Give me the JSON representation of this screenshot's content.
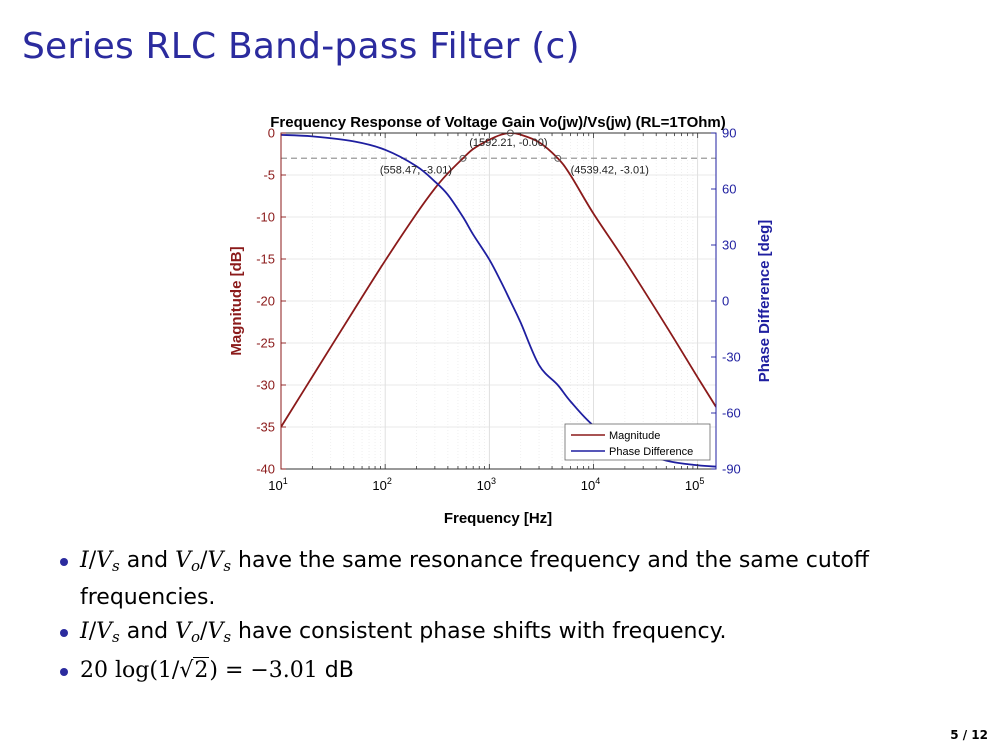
{
  "slide": {
    "title": "Series RLC Band-pass Filter (c)",
    "page": "5 / 12"
  },
  "colors": {
    "magnitude": "#8b1a1a",
    "phase": "#1f1fa0",
    "title": "#2b2b9e",
    "cutoff_line": "#999999"
  },
  "bullets": [
    {
      "a1": "I",
      "a2": "/",
      "a3": "V",
      "a3sub": "s",
      "mid": " and ",
      "b1": "V",
      "b1sub": "o",
      "b2": "/",
      "b3": "V",
      "b3sub": "s",
      "rest": " have the same resonance frequency and the same cutoff frequencies."
    },
    {
      "a1": "I",
      "a2": "/",
      "a3": "V",
      "a3sub": "s",
      "mid": " and ",
      "b1": "V",
      "b1sub": "o",
      "b2": "/",
      "b3": "V",
      "b3sub": "s",
      "rest": " have consistent phase shifts with frequency."
    },
    {
      "pre": "20 log(1/",
      "radical": "√",
      "radicand": "2",
      "post": ") = −3.01",
      "unit": " dB"
    }
  ],
  "chart_data": {
    "type": "line",
    "title": "Frequency Response of Voltage Gain Vo(jw)/Vs(jw) (RL=1TOhm)",
    "xlabel": "Frequency [Hz]",
    "ylabel_left": "Magnitude [dB]",
    "ylabel_right": "Phase Difference [deg]",
    "xscale": "log",
    "xlim": [
      10,
      150000
    ],
    "ylim_left": [
      -40,
      0
    ],
    "ylim_right": [
      -90,
      90
    ],
    "x_ticks": [
      10,
      100,
      1000,
      10000,
      100000
    ],
    "x_tick_labels": [
      {
        "base": "10",
        "exp": "1"
      },
      {
        "base": "10",
        "exp": "2"
      },
      {
        "base": "10",
        "exp": "3"
      },
      {
        "base": "10",
        "exp": "4"
      },
      {
        "base": "10",
        "exp": "5"
      }
    ],
    "y_left_ticks": [
      0,
      -5,
      -10,
      -15,
      -20,
      -25,
      -30,
      -35,
      -40
    ],
    "y_left_tick_labels": [
      "0",
      "-5",
      "-10",
      "-15",
      "-20",
      "-25",
      "-30",
      "-35",
      "-40"
    ],
    "y_right_ticks": [
      90,
      60,
      30,
      0,
      -30,
      -60,
      -90
    ],
    "y_right_tick_labels": [
      "90",
      "60",
      "30",
      "0",
      "-30",
      "-60",
      "-90"
    ],
    "grid": true,
    "legend": {
      "placement": "bottom-right",
      "entries": [
        "Magnitude",
        "Phase Difference"
      ]
    },
    "resonance_hz": 1592.21,
    "cutoff_low_hz": 558.47,
    "cutoff_high_hz": 4539.42,
    "cutoff_db": -3.01,
    "annotations": [
      {
        "x": 1592.21,
        "y": 0.0,
        "label": "(1592.21, -0.00)"
      },
      {
        "x": 558.47,
        "y": -3.01,
        "label": "(558.47, -3.01)"
      },
      {
        "x": 4539.42,
        "y": -3.01,
        "label": "(4539.42, -3.01)"
      }
    ],
    "series": [
      {
        "name": "Magnitude",
        "axis": "left",
        "x": [
          10,
          20,
          50,
          100,
          200,
          300,
          400,
          558.47,
          700,
          1000,
          1300,
          1592.21,
          2000,
          3000,
          4539.42,
          6000,
          10000,
          20000,
          50000,
          100000,
          150000
        ],
        "y": [
          -35.0,
          -29.0,
          -21.1,
          -15.2,
          -9.6,
          -6.6,
          -4.8,
          -3.01,
          -1.9,
          -0.8,
          -0.2,
          0.0,
          -0.2,
          -1.1,
          -3.01,
          -5.0,
          -9.6,
          -15.2,
          -23.0,
          -29.1,
          -32.6
        ]
      },
      {
        "name": "Phase Difference",
        "axis": "right",
        "x": [
          10,
          20,
          50,
          100,
          200,
          300,
          400,
          558.47,
          700,
          1000,
          1300,
          1592.21,
          2000,
          3000,
          4539.42,
          6000,
          10000,
          20000,
          50000,
          100000,
          150000
        ],
        "y": [
          89.0,
          88.2,
          85.5,
          81.0,
          72.2,
          64.0,
          56.9,
          45.0,
          35.6,
          22.2,
          10.1,
          0.0,
          -11.6,
          -34.3,
          -45.0,
          -53.7,
          -66.8,
          -78.1,
          -85.5,
          -88.0,
          -88.7
        ]
      }
    ]
  }
}
